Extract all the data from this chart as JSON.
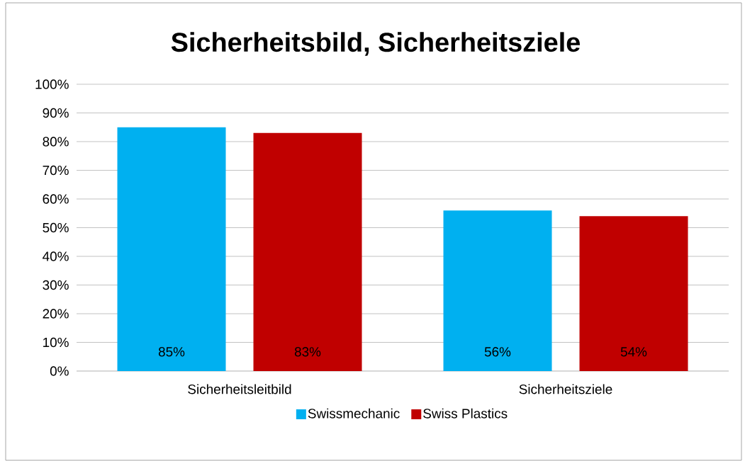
{
  "chart_data": {
    "type": "bar",
    "title": "Sicherheitsbild, Sicherheitsziele",
    "categories": [
      "Sicherheitsleitbild",
      "Sicherheitsziele"
    ],
    "series": [
      {
        "name": "Swissmechanic",
        "color": "#00b0f0",
        "values": [
          85,
          56
        ],
        "value_labels": [
          "85%",
          "56%"
        ]
      },
      {
        "name": "Swiss Plastics",
        "color": "#c00000",
        "values": [
          83,
          54
        ],
        "value_labels": [
          "83%",
          "54%"
        ]
      }
    ],
    "ylim": [
      0,
      100
    ],
    "yticks": [
      {
        "value": 0,
        "label": "0%"
      },
      {
        "value": 10,
        "label": "10%"
      },
      {
        "value": 20,
        "label": "20%"
      },
      {
        "value": 30,
        "label": "30%"
      },
      {
        "value": 40,
        "label": "40%"
      },
      {
        "value": 50,
        "label": "50%"
      },
      {
        "value": 60,
        "label": "60%"
      },
      {
        "value": 70,
        "label": "70%"
      },
      {
        "value": 80,
        "label": "80%"
      },
      {
        "value": 90,
        "label": "90%"
      },
      {
        "value": 100,
        "label": "100%"
      }
    ],
    "grid": "y",
    "legend": "bottom"
  }
}
